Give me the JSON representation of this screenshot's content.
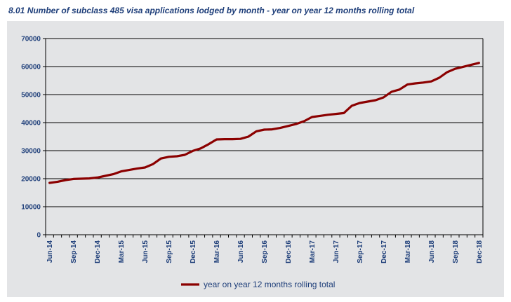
{
  "title": "8.01 Number of subclass 485 visa applications lodged by month - year on year 12 months rolling total",
  "colors": {
    "series": "#8b0000",
    "background": "#e3e4e6",
    "text": "#1f3f7a",
    "grid": "#000000"
  },
  "chart_data": {
    "type": "line",
    "title": "8.01 Number of subclass 485 visa applications lodged by month - year on year 12 months rolling total",
    "xlabel": "",
    "ylabel": "",
    "ylim": [
      0,
      70000
    ],
    "yticks": [
      0,
      10000,
      20000,
      30000,
      40000,
      50000,
      60000,
      70000
    ],
    "grid": true,
    "legend_position": "bottom",
    "x": [
      "Jun-14",
      "Jul-14",
      "Aug-14",
      "Sep-14",
      "Oct-14",
      "Nov-14",
      "Dec-14",
      "Jan-15",
      "Feb-15",
      "Mar-15",
      "Apr-15",
      "May-15",
      "Jun-15",
      "Jul-15",
      "Aug-15",
      "Sep-15",
      "Oct-15",
      "Nov-15",
      "Dec-15",
      "Jan-16",
      "Feb-16",
      "Mar-16",
      "Apr-16",
      "May-16",
      "Jun-16",
      "Jul-16",
      "Aug-16",
      "Sep-16",
      "Oct-16",
      "Nov-16",
      "Dec-16",
      "Jan-17",
      "Feb-17",
      "Mar-17",
      "Apr-17",
      "May-17",
      "Jun-17",
      "Jul-17",
      "Aug-17",
      "Sep-17",
      "Oct-17",
      "Nov-17",
      "Dec-17",
      "Jan-18",
      "Feb-18",
      "Mar-18",
      "Apr-18",
      "May-18",
      "Jun-18",
      "Jul-18",
      "Aug-18",
      "Sep-18",
      "Oct-18",
      "Nov-18",
      "Dec-18"
    ],
    "xtick_labels": [
      "Jun-14",
      "Sep-14",
      "Dec-14",
      "Mar-15",
      "Jun-15",
      "Sep-15",
      "Dec-15",
      "Mar-16",
      "Jun-16",
      "Sep-16",
      "Dec-16",
      "Mar-17",
      "Jun-17",
      "Sep-17",
      "Dec-17",
      "Mar-18",
      "Jun-18",
      "Sep-18",
      "Dec-18"
    ],
    "series": [
      {
        "name": "year on year 12 months rolling total",
        "color": "#8b0000",
        "values": [
          18500,
          18900,
          19500,
          19900,
          20000,
          20100,
          20400,
          21000,
          21600,
          22600,
          23100,
          23600,
          24000,
          25200,
          27200,
          27800,
          28000,
          28500,
          29900,
          30800,
          32300,
          34000,
          34100,
          34100,
          34200,
          35000,
          36900,
          37500,
          37600,
          38100,
          38800,
          39500,
          40500,
          42000,
          42400,
          42800,
          43100,
          43400,
          46000,
          47000,
          47500,
          48000,
          49000,
          51000,
          51800,
          53600,
          54000,
          54300,
          54700,
          56000,
          58000,
          59200,
          59900,
          60600,
          61300
        ]
      }
    ]
  }
}
